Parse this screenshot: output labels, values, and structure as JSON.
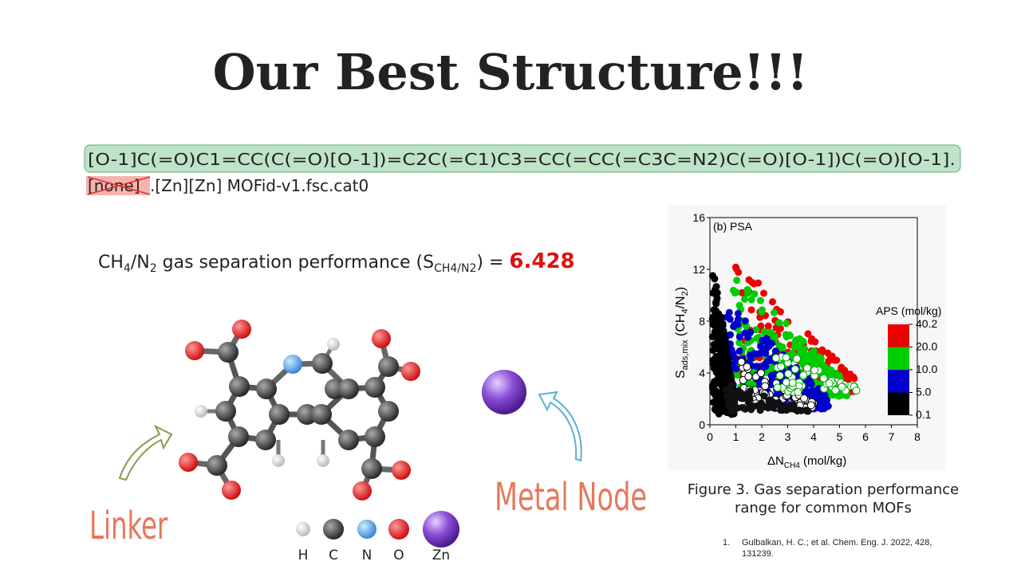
{
  "title": "Our Best Structure!!!",
  "smiles": {
    "line1": "[O-1]C(=O)C1=CC(C(=O)[O-1])=C2C(=C1)C3=CC(=CC(=C3C=N2)C(=O)[O-1])C(=O)[O-1].",
    "crossed": "[none]",
    "rest": ".[Zn][Zn] MOFid-v1.fsc.cat0"
  },
  "performance": {
    "a": "CH",
    "a_sub": "4",
    "b": "/N",
    "b_sub": "2",
    "c": " gas separation performance (S",
    "c_sub": "CH4/N2",
    "d": ") = ",
    "value": 6.428
  },
  "labels": {
    "linker": "Linker",
    "metal_node": "Metal Node"
  },
  "atom_legend": [
    "H",
    "C",
    "N",
    "O",
    "Zn"
  ],
  "figure": {
    "panel": "(b) PSA",
    "ylabel": {
      "a": "S",
      "a_sub": "ads,mix",
      "b": " (CH",
      "b_sub": "4",
      "c": "/N",
      "c_sub": "2",
      "d": ")"
    },
    "xlabel": {
      "a": "ΔN",
      "a_sub": "CH4",
      "b": " (mol/kg)"
    },
    "xlim": [
      0,
      8
    ],
    "xticks": [
      0,
      1,
      2,
      3,
      4,
      5,
      6,
      7,
      8
    ],
    "ylim": [
      0,
      16
    ],
    "yticks": [
      0,
      4,
      8,
      12,
      16
    ],
    "colorbar_title": "APS (mol/kg)",
    "colorbar_ticks": [
      40.2,
      {
        "value": 20,
        "label": "20.0"
      },
      {
        "value": 10,
        "label": "10.0"
      },
      {
        "value": 5,
        "label": "5.0"
      },
      0.1
    ]
  },
  "caption": "Figure 3. Gas separation performance range for common MOFs",
  "reference": {
    "number": "1.",
    "text_line1": "Gulbalkan, H. C.; et al. Chem. Eng. J. 2022, 428,",
    "text_line2": "131239."
  }
}
